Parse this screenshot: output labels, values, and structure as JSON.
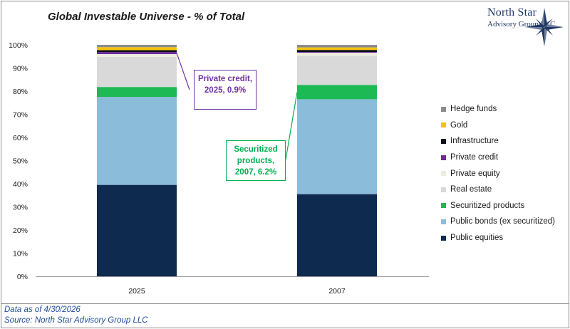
{
  "title": "Global Investable Universe - % of Total",
  "logo": {
    "line1": "North Star",
    "line2": "Advisory Group LLC"
  },
  "footer": {
    "line1": "Data as of 4/30/2026",
    "line2": "Source: North Star Advisory Group LLC"
  },
  "annotations": [
    {
      "text": "Private credit, 2025, 0.9%",
      "color": "#7030a0"
    },
    {
      "text": "Securitized products, 2007, 6.2%",
      "color": "#00b050"
    }
  ],
  "chart_data": {
    "type": "bar",
    "stacked": true,
    "title": "Global Investable Universe - % of Total",
    "categories": [
      "2025",
      "2007"
    ],
    "ylim": [
      0,
      100
    ],
    "yticks": [
      "0%",
      "10%",
      "20%",
      "30%",
      "40%",
      "50%",
      "60%",
      "70%",
      "80%",
      "90%",
      "100%"
    ],
    "legend_position": "right",
    "series": [
      {
        "name": "Public equities",
        "color": "#0e2a4e",
        "values": [
          39.5,
          35.5
        ]
      },
      {
        "name": "Public bonds (ex securitized)",
        "color": "#8bbcda",
        "values": [
          38.0,
          41.0
        ]
      },
      {
        "name": "Securitized products",
        "color": "#1db954",
        "values": [
          4.3,
          6.2
        ]
      },
      {
        "name": "Real estate",
        "color": "#d9d9d9",
        "values": [
          13.0,
          12.5
        ]
      },
      {
        "name": "Private equity",
        "color": "#ededdf",
        "values": [
          1.2,
          1.4
        ]
      },
      {
        "name": "Private credit",
        "color": "#6c2a9a",
        "values": [
          0.9,
          0.3
        ]
      },
      {
        "name": "Infrastructure",
        "color": "#0b0f1a",
        "values": [
          0.8,
          0.9
        ]
      },
      {
        "name": "Gold",
        "color": "#f4c20d",
        "values": [
          1.3,
          1.1
        ]
      },
      {
        "name": "Hedge funds",
        "color": "#8c8c8c",
        "values": [
          1.0,
          1.1
        ]
      }
    ]
  }
}
